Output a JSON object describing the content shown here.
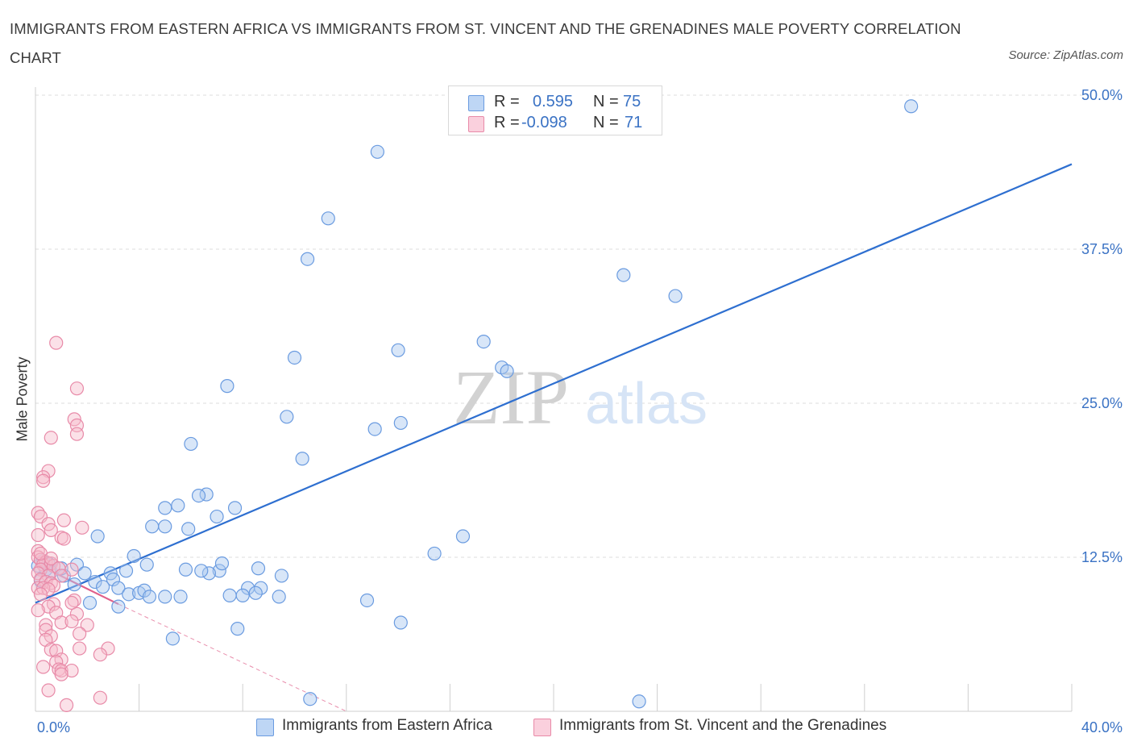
{
  "title": "IMMIGRANTS FROM EASTERN AFRICA VS IMMIGRANTS FROM ST. VINCENT AND THE GRENADINES MALE POVERTY CORRELATION CHART",
  "source": "Source: ZipAtlas.com",
  "watermark": {
    "zip": "ZIP",
    "atlas": "atlas"
  },
  "legend": {
    "rows": [
      {
        "r_label": "R =",
        "r_value": "0.595",
        "n_label": "N =",
        "n_value": "75",
        "color": "#a9c8f0",
        "border": "#6a9be0"
      },
      {
        "r_label": "R =",
        "r_value": "-0.098",
        "n_label": "N =",
        "n_value": "71",
        "color": "#f6bccd",
        "border": "#e88aa8"
      }
    ]
  },
  "bottom_legend": [
    {
      "label": "Immigrants from Eastern Africa",
      "color": "#a9c8f0",
      "border": "#6a9be0"
    },
    {
      "label": "Immigrants from St. Vincent and the Grenadines",
      "color": "#f6bccd",
      "border": "#e88aa8"
    }
  ],
  "chart_data": {
    "type": "scatter",
    "title": "IMMIGRANTS FROM EASTERN AFRICA VS IMMIGRANTS FROM ST. VINCENT AND THE GRENADINES MALE POVERTY CORRELATION CHART",
    "xlabel": "",
    "ylabel": "Male Poverty",
    "xlim": [
      0,
      40
    ],
    "ylim": [
      0,
      50
    ],
    "x_tick_labels": [
      "0.0%",
      "40.0%"
    ],
    "y_tick_labels": [
      "12.5%",
      "25.0%",
      "37.5%",
      "50.0%"
    ],
    "y_ticks": [
      12.5,
      25.0,
      37.5,
      50.0
    ],
    "grid": true,
    "legend_position": "top-center",
    "series": [
      {
        "name": "Immigrants from Eastern Africa",
        "color": "#a9c8f0",
        "stroke": "#6a9be0",
        "trend": {
          "x": [
            0,
            40
          ],
          "y": [
            8.8,
            44.4
          ],
          "color": "#2e6fd0",
          "style": "solid"
        },
        "points": [
          [
            33.8,
            49.1
          ],
          [
            13.2,
            45.4
          ],
          [
            11.3,
            40.0
          ],
          [
            10.5,
            36.7
          ],
          [
            22.7,
            35.4
          ],
          [
            24.7,
            33.7
          ],
          [
            14.0,
            29.3
          ],
          [
            17.3,
            30.0
          ],
          [
            10.0,
            28.7
          ],
          [
            18.0,
            27.9
          ],
          [
            18.2,
            27.6
          ],
          [
            7.4,
            26.4
          ],
          [
            9.7,
            23.9
          ],
          [
            14.1,
            23.4
          ],
          [
            13.1,
            22.9
          ],
          [
            6.0,
            21.7
          ],
          [
            10.3,
            20.5
          ],
          [
            6.6,
            17.6
          ],
          [
            6.3,
            17.5
          ],
          [
            7.7,
            16.5
          ],
          [
            5.0,
            16.5
          ],
          [
            5.5,
            16.7
          ],
          [
            7.0,
            15.8
          ],
          [
            4.5,
            15.0
          ],
          [
            5.0,
            15.0
          ],
          [
            5.9,
            14.8
          ],
          [
            2.4,
            14.2
          ],
          [
            16.5,
            14.2
          ],
          [
            15.4,
            12.8
          ],
          [
            3.8,
            12.6
          ],
          [
            0.3,
            12.2
          ],
          [
            0.1,
            11.8
          ],
          [
            0.5,
            12.0
          ],
          [
            1.6,
            11.9
          ],
          [
            4.3,
            11.9
          ],
          [
            0.4,
            11.5
          ],
          [
            0.6,
            11.3
          ],
          [
            1.1,
            11.0
          ],
          [
            1.9,
            11.2
          ],
          [
            2.9,
            11.2
          ],
          [
            3.5,
            11.4
          ],
          [
            5.8,
            11.5
          ],
          [
            7.1,
            11.4
          ],
          [
            7.2,
            12.0
          ],
          [
            8.6,
            11.6
          ],
          [
            9.5,
            11.0
          ],
          [
            6.7,
            11.2
          ],
          [
            3.0,
            10.7
          ],
          [
            2.3,
            10.5
          ],
          [
            1.5,
            10.3
          ],
          [
            2.6,
            10.1
          ],
          [
            3.2,
            10.0
          ],
          [
            3.6,
            9.5
          ],
          [
            4.0,
            9.6
          ],
          [
            4.2,
            9.8
          ],
          [
            4.4,
            9.3
          ],
          [
            5.0,
            9.3
          ],
          [
            5.6,
            9.3
          ],
          [
            8.2,
            10.0
          ],
          [
            8.7,
            10.0
          ],
          [
            8.5,
            9.6
          ],
          [
            7.5,
            9.4
          ],
          [
            8.0,
            9.4
          ],
          [
            9.4,
            9.3
          ],
          [
            12.8,
            9.0
          ],
          [
            2.1,
            8.8
          ],
          [
            3.2,
            8.5
          ],
          [
            7.8,
            6.7
          ],
          [
            14.1,
            7.2
          ],
          [
            5.3,
            5.9
          ],
          [
            10.6,
            1.0
          ],
          [
            23.3,
            0.8
          ],
          [
            0.2,
            10.6
          ],
          [
            1.0,
            11.6
          ],
          [
            6.4,
            11.4
          ]
        ]
      },
      {
        "name": "Immigrants from St. Vincent and the Grenadines",
        "color": "#f6bccd",
        "stroke": "#e88aa8",
        "trend": {
          "x": [
            0,
            3.2
          ],
          "y": [
            12.0,
            8.7
          ],
          "x_ext": [
            3.2,
            12.0
          ],
          "y_ext": [
            8.7,
            0.0
          ],
          "color": "#e0608a",
          "style": "solid+dashed"
        },
        "points": [
          [
            0.8,
            29.9
          ],
          [
            1.6,
            26.2
          ],
          [
            1.5,
            23.7
          ],
          [
            1.6,
            23.2
          ],
          [
            1.6,
            22.5
          ],
          [
            0.6,
            22.2
          ],
          [
            0.5,
            19.5
          ],
          [
            0.3,
            19.0
          ],
          [
            0.3,
            18.7
          ],
          [
            0.1,
            16.1
          ],
          [
            0.2,
            15.8
          ],
          [
            1.1,
            15.5
          ],
          [
            0.5,
            15.2
          ],
          [
            1.8,
            14.9
          ],
          [
            0.6,
            14.7
          ],
          [
            0.1,
            14.3
          ],
          [
            1.0,
            14.1
          ],
          [
            1.1,
            14.0
          ],
          [
            0.1,
            13.0
          ],
          [
            0.1,
            12.5
          ],
          [
            0.2,
            12.3
          ],
          [
            0.4,
            12.1
          ],
          [
            0.3,
            11.9
          ],
          [
            0.6,
            12.0
          ],
          [
            0.7,
            11.8
          ],
          [
            0.9,
            11.6
          ],
          [
            1.4,
            11.5
          ],
          [
            0.2,
            11.5
          ],
          [
            0.1,
            11.2
          ],
          [
            0.5,
            11.0
          ],
          [
            1.0,
            11.0
          ],
          [
            0.2,
            10.7
          ],
          [
            0.4,
            10.5
          ],
          [
            0.6,
            10.4
          ],
          [
            0.7,
            10.2
          ],
          [
            0.1,
            10.0
          ],
          [
            0.3,
            10.0
          ],
          [
            0.5,
            9.9
          ],
          [
            0.2,
            9.5
          ],
          [
            1.5,
            9.0
          ],
          [
            0.7,
            8.7
          ],
          [
            0.5,
            8.5
          ],
          [
            1.4,
            8.8
          ],
          [
            0.1,
            8.2
          ],
          [
            0.8,
            8.0
          ],
          [
            1.6,
            7.9
          ],
          [
            1.0,
            7.2
          ],
          [
            0.4,
            7.0
          ],
          [
            1.4,
            7.3
          ],
          [
            2.0,
            7.0
          ],
          [
            0.4,
            6.6
          ],
          [
            1.7,
            6.3
          ],
          [
            0.6,
            6.1
          ],
          [
            0.4,
            5.8
          ],
          [
            0.6,
            5.0
          ],
          [
            0.8,
            4.9
          ],
          [
            1.7,
            5.1
          ],
          [
            2.8,
            5.1
          ],
          [
            2.5,
            4.6
          ],
          [
            1.0,
            4.2
          ],
          [
            0.8,
            4.0
          ],
          [
            0.3,
            3.6
          ],
          [
            0.9,
            3.4
          ],
          [
            1.0,
            3.3
          ],
          [
            1.4,
            3.3
          ],
          [
            1.0,
            3.0
          ],
          [
            0.5,
            1.7
          ],
          [
            2.5,
            1.1
          ],
          [
            1.2,
            0.5
          ],
          [
            0.2,
            12.8
          ],
          [
            0.6,
            12.4
          ]
        ]
      }
    ]
  }
}
